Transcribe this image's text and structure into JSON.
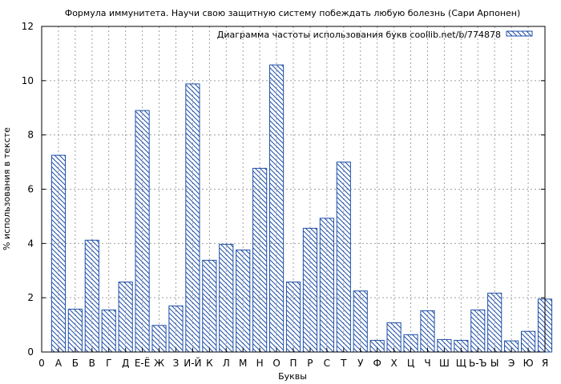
{
  "chart_data": {
    "type": "bar",
    "title": "Формула иммунитета. Научи свою защитную систему побеждать любую болезнь (Сари Арпонен)",
    "xlabel": "Буквы",
    "ylabel": "% использования в тексте",
    "legend": {
      "label": "Диаграмма частоты использования букв coollib.net/b/774878",
      "position": "top-right"
    },
    "ylim": [
      0,
      12
    ],
    "yticks": [
      0,
      2,
      4,
      6,
      8,
      10,
      12
    ],
    "grid": true,
    "bar_color": "#1f4fa8",
    "categories": [
      "0",
      "А",
      "Б",
      "В",
      "Г",
      "Д",
      "Е-Ё",
      "Ж",
      "З",
      "И-Й",
      "К",
      "Л",
      "М",
      "Н",
      "О",
      "П",
      "Р",
      "С",
      "Т",
      "У",
      "Ф",
      "Х",
      "Ц",
      "Ч",
      "Ш",
      "Щ",
      "Ь-Ъ",
      "Ы",
      "Э",
      "Ю",
      "Я"
    ],
    "values": [
      0,
      7.25,
      1.58,
      4.12,
      1.55,
      2.58,
      8.9,
      0.98,
      1.7,
      9.88,
      3.38,
      3.97,
      3.76,
      6.77,
      10.58,
      2.58,
      4.56,
      4.93,
      7.0,
      2.25,
      0.43,
      1.08,
      0.64,
      1.52,
      0.46,
      0.43,
      1.55,
      2.17,
      0.41,
      0.76,
      1.95
    ]
  }
}
